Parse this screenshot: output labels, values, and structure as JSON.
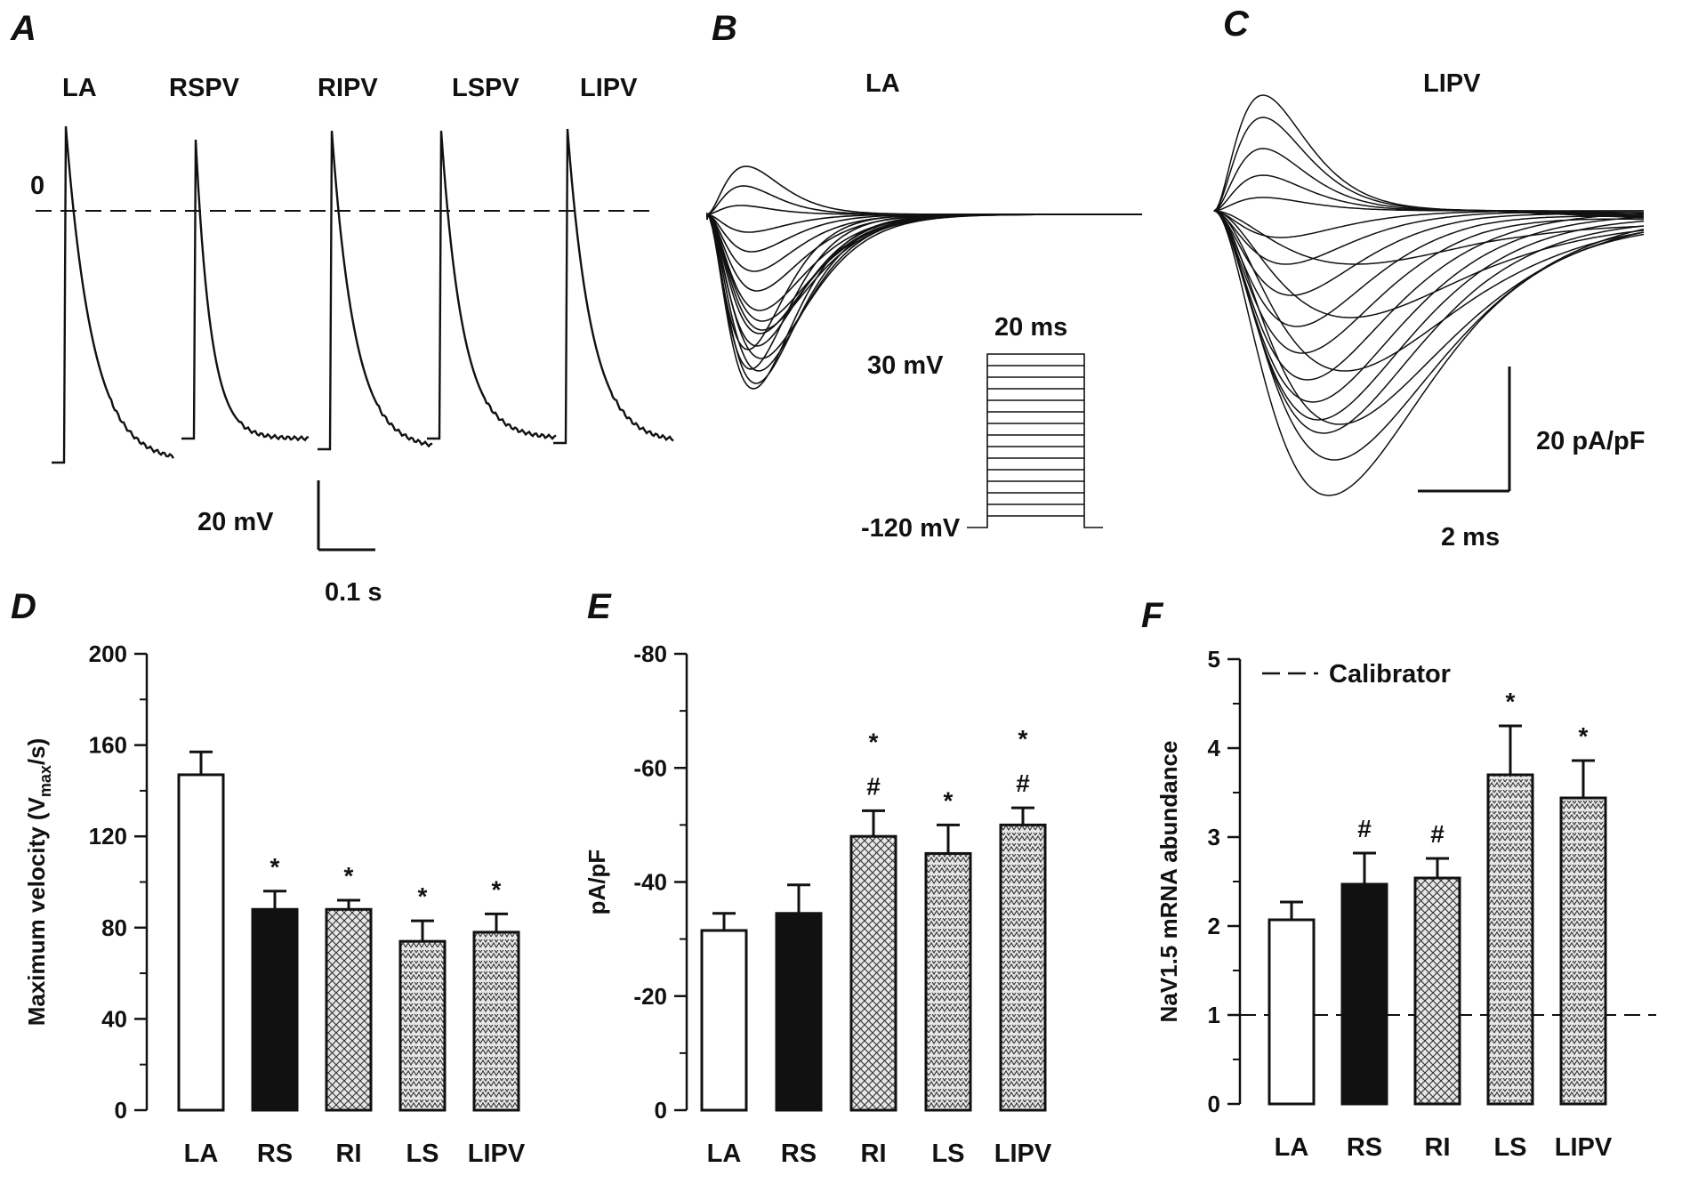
{
  "panel_letters": [
    "A",
    "B",
    "C",
    "D",
    "E",
    "F"
  ],
  "panel_a": {
    "traces": [
      "LA",
      "RSPV",
      "RIPV",
      "LSPV",
      "LIPV"
    ],
    "zero_label": "0",
    "scale_v": "20 mV",
    "scale_t": "0.1 s"
  },
  "panel_b": {
    "title": "LA",
    "protocol_duration": "20 ms",
    "protocol_top": "30 mV",
    "protocol_bottom": "-120 mV"
  },
  "panel_c": {
    "title": "LIPV",
    "scale_i": "20 pA/pF",
    "scale_t": "2 ms"
  },
  "colors": {
    "ink": "#111111",
    "white_bar": "#ffffff",
    "black_bar": "#111111",
    "hatch_bg": "#e6e6e6"
  },
  "chart_data": [
    {
      "panel": "D",
      "type": "bar",
      "ylabel_main": "Maximum velocity (V",
      "ylabel_sub": "max",
      "ylabel_end": "/s)",
      "categories": [
        "LA",
        "RS",
        "RI",
        "LS",
        "LIPV"
      ],
      "values": [
        147,
        88,
        88,
        74,
        78
      ],
      "errors": [
        10,
        8,
        4,
        9,
        8
      ],
      "significance": [
        [],
        [
          "*"
        ],
        [
          "*"
        ],
        [
          "*"
        ],
        [
          "*"
        ]
      ],
      "fills": [
        "white",
        "black",
        "crosshatch",
        "zigzag",
        "zigzag"
      ],
      "ylim": [
        0,
        200
      ],
      "yticks": [
        0,
        40,
        80,
        120,
        160,
        200
      ],
      "ytick_labels": [
        "0",
        "40",
        "80",
        "120",
        "160",
        "200"
      ]
    },
    {
      "panel": "E",
      "type": "bar",
      "ylabel": "pA/pF",
      "categories": [
        "LA",
        "RS",
        "RI",
        "LS",
        "LIPV"
      ],
      "values": [
        -31.5,
        -34.5,
        -48,
        -45,
        -50
      ],
      "errors": [
        3,
        5,
        4.5,
        5,
        3
      ],
      "significance": [
        [],
        [],
        [
          "#",
          "*"
        ],
        [
          "*"
        ],
        [
          "#",
          "*"
        ]
      ],
      "fills": [
        "white",
        "black",
        "crosshatch",
        "zigzag",
        "zigzag"
      ],
      "ylim": [
        0,
        -80
      ],
      "yticks": [
        0,
        -20,
        -40,
        -60,
        -80
      ],
      "ytick_labels": [
        "0",
        "-20",
        "-40",
        "-60",
        "-80"
      ]
    },
    {
      "panel": "F",
      "type": "bar",
      "ylabel": "NaV1.5 mRNA abundance",
      "categories": [
        "LA",
        "RS",
        "RI",
        "LS",
        "LIPV"
      ],
      "values": [
        2.07,
        2.47,
        2.54,
        3.7,
        3.44
      ],
      "errors": [
        0.2,
        0.35,
        0.22,
        0.55,
        0.42
      ],
      "significance": [
        [],
        [
          "#"
        ],
        [
          "#"
        ],
        [
          "*"
        ],
        [
          "*"
        ]
      ],
      "fills": [
        "white",
        "black",
        "crosshatch",
        "zigzag",
        "zigzag"
      ],
      "ylim": [
        0,
        5
      ],
      "yticks": [
        0,
        1,
        2,
        3,
        4,
        5
      ],
      "ytick_labels": [
        "0",
        "1",
        "2",
        "3",
        "4",
        "5"
      ],
      "reference_line": {
        "value": 1,
        "label": "Calibrator"
      }
    }
  ]
}
